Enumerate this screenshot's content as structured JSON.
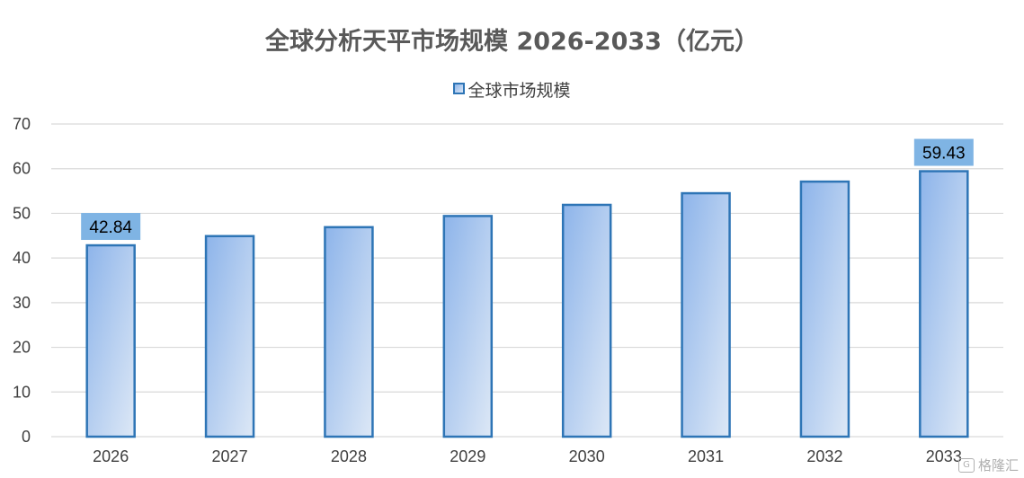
{
  "chart_data": {
    "type": "bar",
    "title": "全球分析天平市场规模 2026-2033（亿元）",
    "categories": [
      "2026",
      "2027",
      "2028",
      "2029",
      "2030",
      "2031",
      "2032",
      "2033"
    ],
    "series": [
      {
        "name": "全球市场规模",
        "values": [
          42.84,
          44.9,
          46.9,
          49.4,
          51.9,
          54.5,
          57.1,
          59.43
        ]
      }
    ],
    "data_labels": {
      "2026": "42.84",
      "2033": "59.43"
    },
    "yticks": [
      "0",
      "10",
      "20",
      "30",
      "40",
      "50",
      "60",
      "70"
    ],
    "ylim": [
      0,
      70
    ],
    "xlabel": "",
    "ylabel": "",
    "grid": true,
    "legend_position": "top-center",
    "colors": {
      "bar_top": "#8db4ea",
      "bar_bottom": "#dde8f6",
      "bar_border": "#2e75b6",
      "label_box": "#7fb4e4",
      "gridline": "#d9d9d9"
    }
  },
  "watermark": {
    "icon": "gelonghui-logo-icon",
    "text": "格隆汇"
  }
}
